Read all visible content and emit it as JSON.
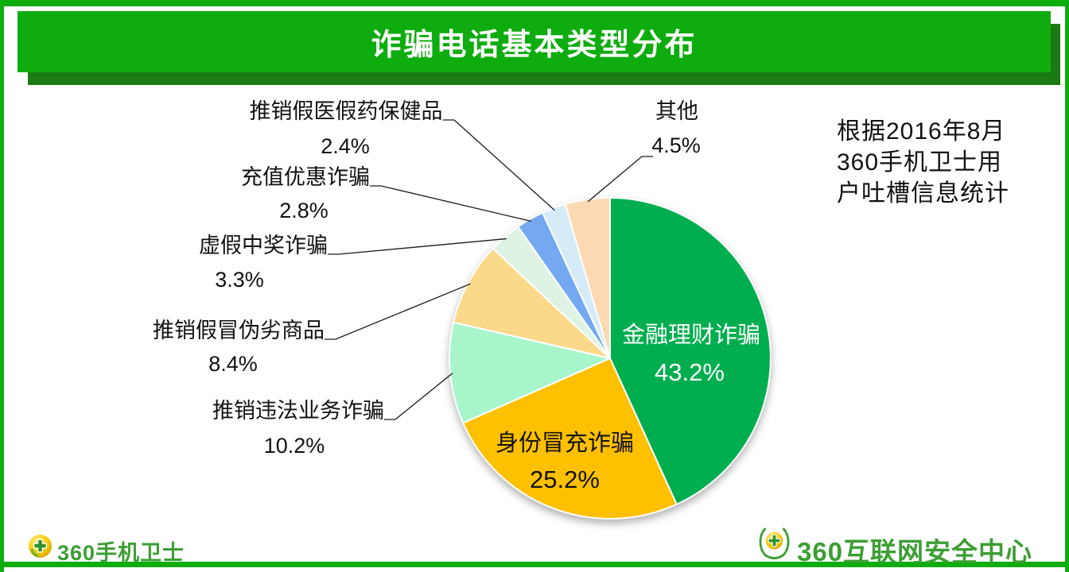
{
  "title_bar": {
    "title": "诈骗电话基本类型分布"
  },
  "note": {
    "lines": [
      "根据2016年8月",
      "360手机卫士用",
      "户吐槽信息统计"
    ]
  },
  "footer": {
    "left_brand": "360手机卫士",
    "right_brand": "360互联网安全中心"
  },
  "colors": {
    "banner_green": "#0EAC0E",
    "banner_shadow_green": "#1B7A12",
    "frame_green": "#0EAC0E",
    "brand_green": "#3C9E34",
    "pie_main_green": "#00AE4F",
    "pie_orange": "#FFC000"
  },
  "chart_data": {
    "type": "pie",
    "title": "诈骗电话基本类型分布",
    "source_note": "根据2016年8月360手机卫士用户吐槽信息统计",
    "start_angle_deg": 0,
    "direction": "clockwise",
    "legend_position": "callouts",
    "slices": [
      {
        "label": "金融理财诈骗",
        "value": 43.2,
        "pct": "43.2%",
        "color": "#00AE4F",
        "label_placement": "inside",
        "label_color": "#FFFFFF"
      },
      {
        "label": "身份冒充诈骗",
        "value": 25.2,
        "pct": "25.2%",
        "color": "#FFC000",
        "label_placement": "inside",
        "label_color": "#111111"
      },
      {
        "label": "推销违法业务诈骗",
        "value": 10.2,
        "pct": "10.2%",
        "color": "#A8F5CC",
        "label_placement": "callout",
        "label_color": "#111111"
      },
      {
        "label": "推销假冒伪劣商品",
        "value": 8.4,
        "pct": "8.4%",
        "color": "#FAD98B",
        "label_placement": "callout",
        "label_color": "#111111"
      },
      {
        "label": "虚假中奖诈骗",
        "value": 3.3,
        "pct": "3.3%",
        "color": "#DFF3E4",
        "label_placement": "callout",
        "label_color": "#111111"
      },
      {
        "label": "充值优惠诈骗",
        "value": 2.8,
        "pct": "2.8%",
        "color": "#74A9F2",
        "label_placement": "callout",
        "label_color": "#111111"
      },
      {
        "label": "推销假医假药保健品",
        "value": 2.4,
        "pct": "2.4%",
        "color": "#D5EBF8",
        "label_placement": "callout",
        "label_color": "#111111"
      },
      {
        "label": "其他",
        "value": 4.5,
        "pct": "4.5%",
        "color": "#FCD9B2",
        "label_placement": "callout",
        "label_color": "#111111"
      }
    ]
  }
}
